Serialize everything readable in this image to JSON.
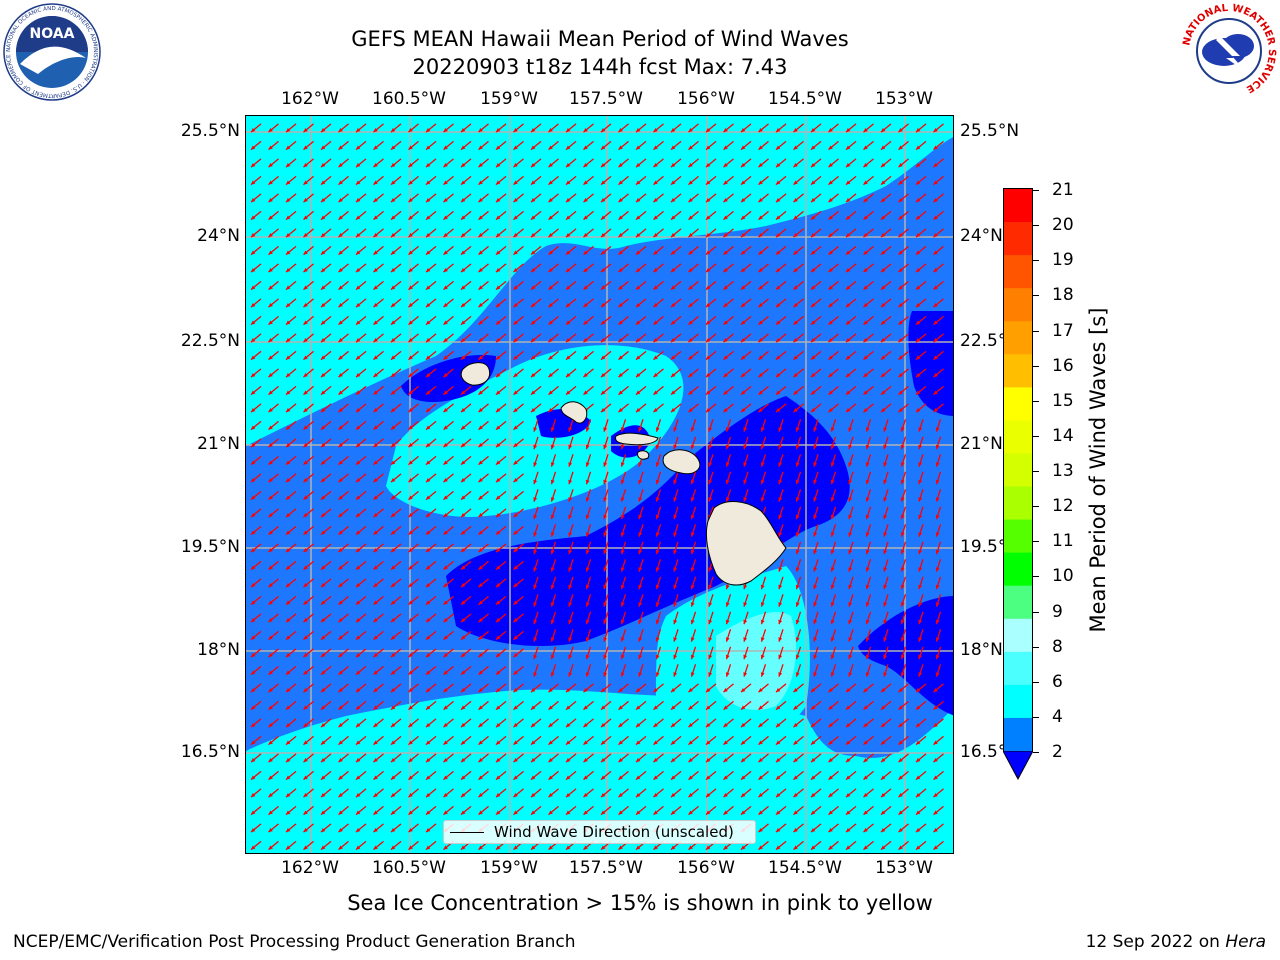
{
  "title": {
    "line1": "GEFS MEAN Hawaii Mean Period of Wind Waves",
    "line2": "20220903 t18z 144h fcst   Max: 7.43"
  },
  "axes": {
    "x_ticks": [
      "162°W",
      "160.5°W",
      "159°W",
      "157.5°W",
      "156°W",
      "154.5°W",
      "153°W"
    ],
    "y_ticks": [
      "25.5°N",
      "24°N",
      "22.5°N",
      "21°N",
      "19.5°N",
      "18°N",
      "16.5°N"
    ]
  },
  "legend": {
    "label": "Wind Wave Direction (unscaled)"
  },
  "colorbar": {
    "label": "Mean Period of Wind Waves [s]",
    "ticks": [
      "21",
      "20",
      "19",
      "18",
      "17",
      "16",
      "15",
      "14",
      "13",
      "12",
      "11",
      "10",
      "9",
      "8",
      "6",
      "4",
      "2"
    ],
    "colors": [
      "#ff0000",
      "#ff2a00",
      "#ff5500",
      "#ff7f00",
      "#ff9f00",
      "#ffbf00",
      "#ffff00",
      "#eaff00",
      "#d4ff00",
      "#aaff00",
      "#55ff00",
      "#00ff00",
      "#4cff80",
      "#aaffff",
      "#4cffff",
      "#00ffff",
      "#0080ff"
    ],
    "under_color": "#0000ff"
  },
  "caption": "Sea Ice Concentration > 15% is shown in pink to yellow",
  "footer": {
    "left": "NCEP/EMC/Verification Post Processing Product Generation Branch",
    "right_date": "12 Sep 2022 on ",
    "right_host": "Hera"
  },
  "logos": {
    "noaa_text": "NOAA",
    "noaa_ring": "NATIONAL OCEANIC AND ATMOSPHERIC ADMINISTRATION · U.S. DEPARTMENT OF COMMERCE",
    "nws_ring": "NATIONAL WEATHER SERVICE"
  },
  "map_colors": {
    "ocean_light": "#00ffff",
    "ocean_mid": "#1e78ff",
    "ocean_dark": "#0000ff",
    "pale": "#66ffff",
    "land": "#efeadb",
    "arrow": "#ff0000",
    "grid": "#b3b3b3"
  }
}
